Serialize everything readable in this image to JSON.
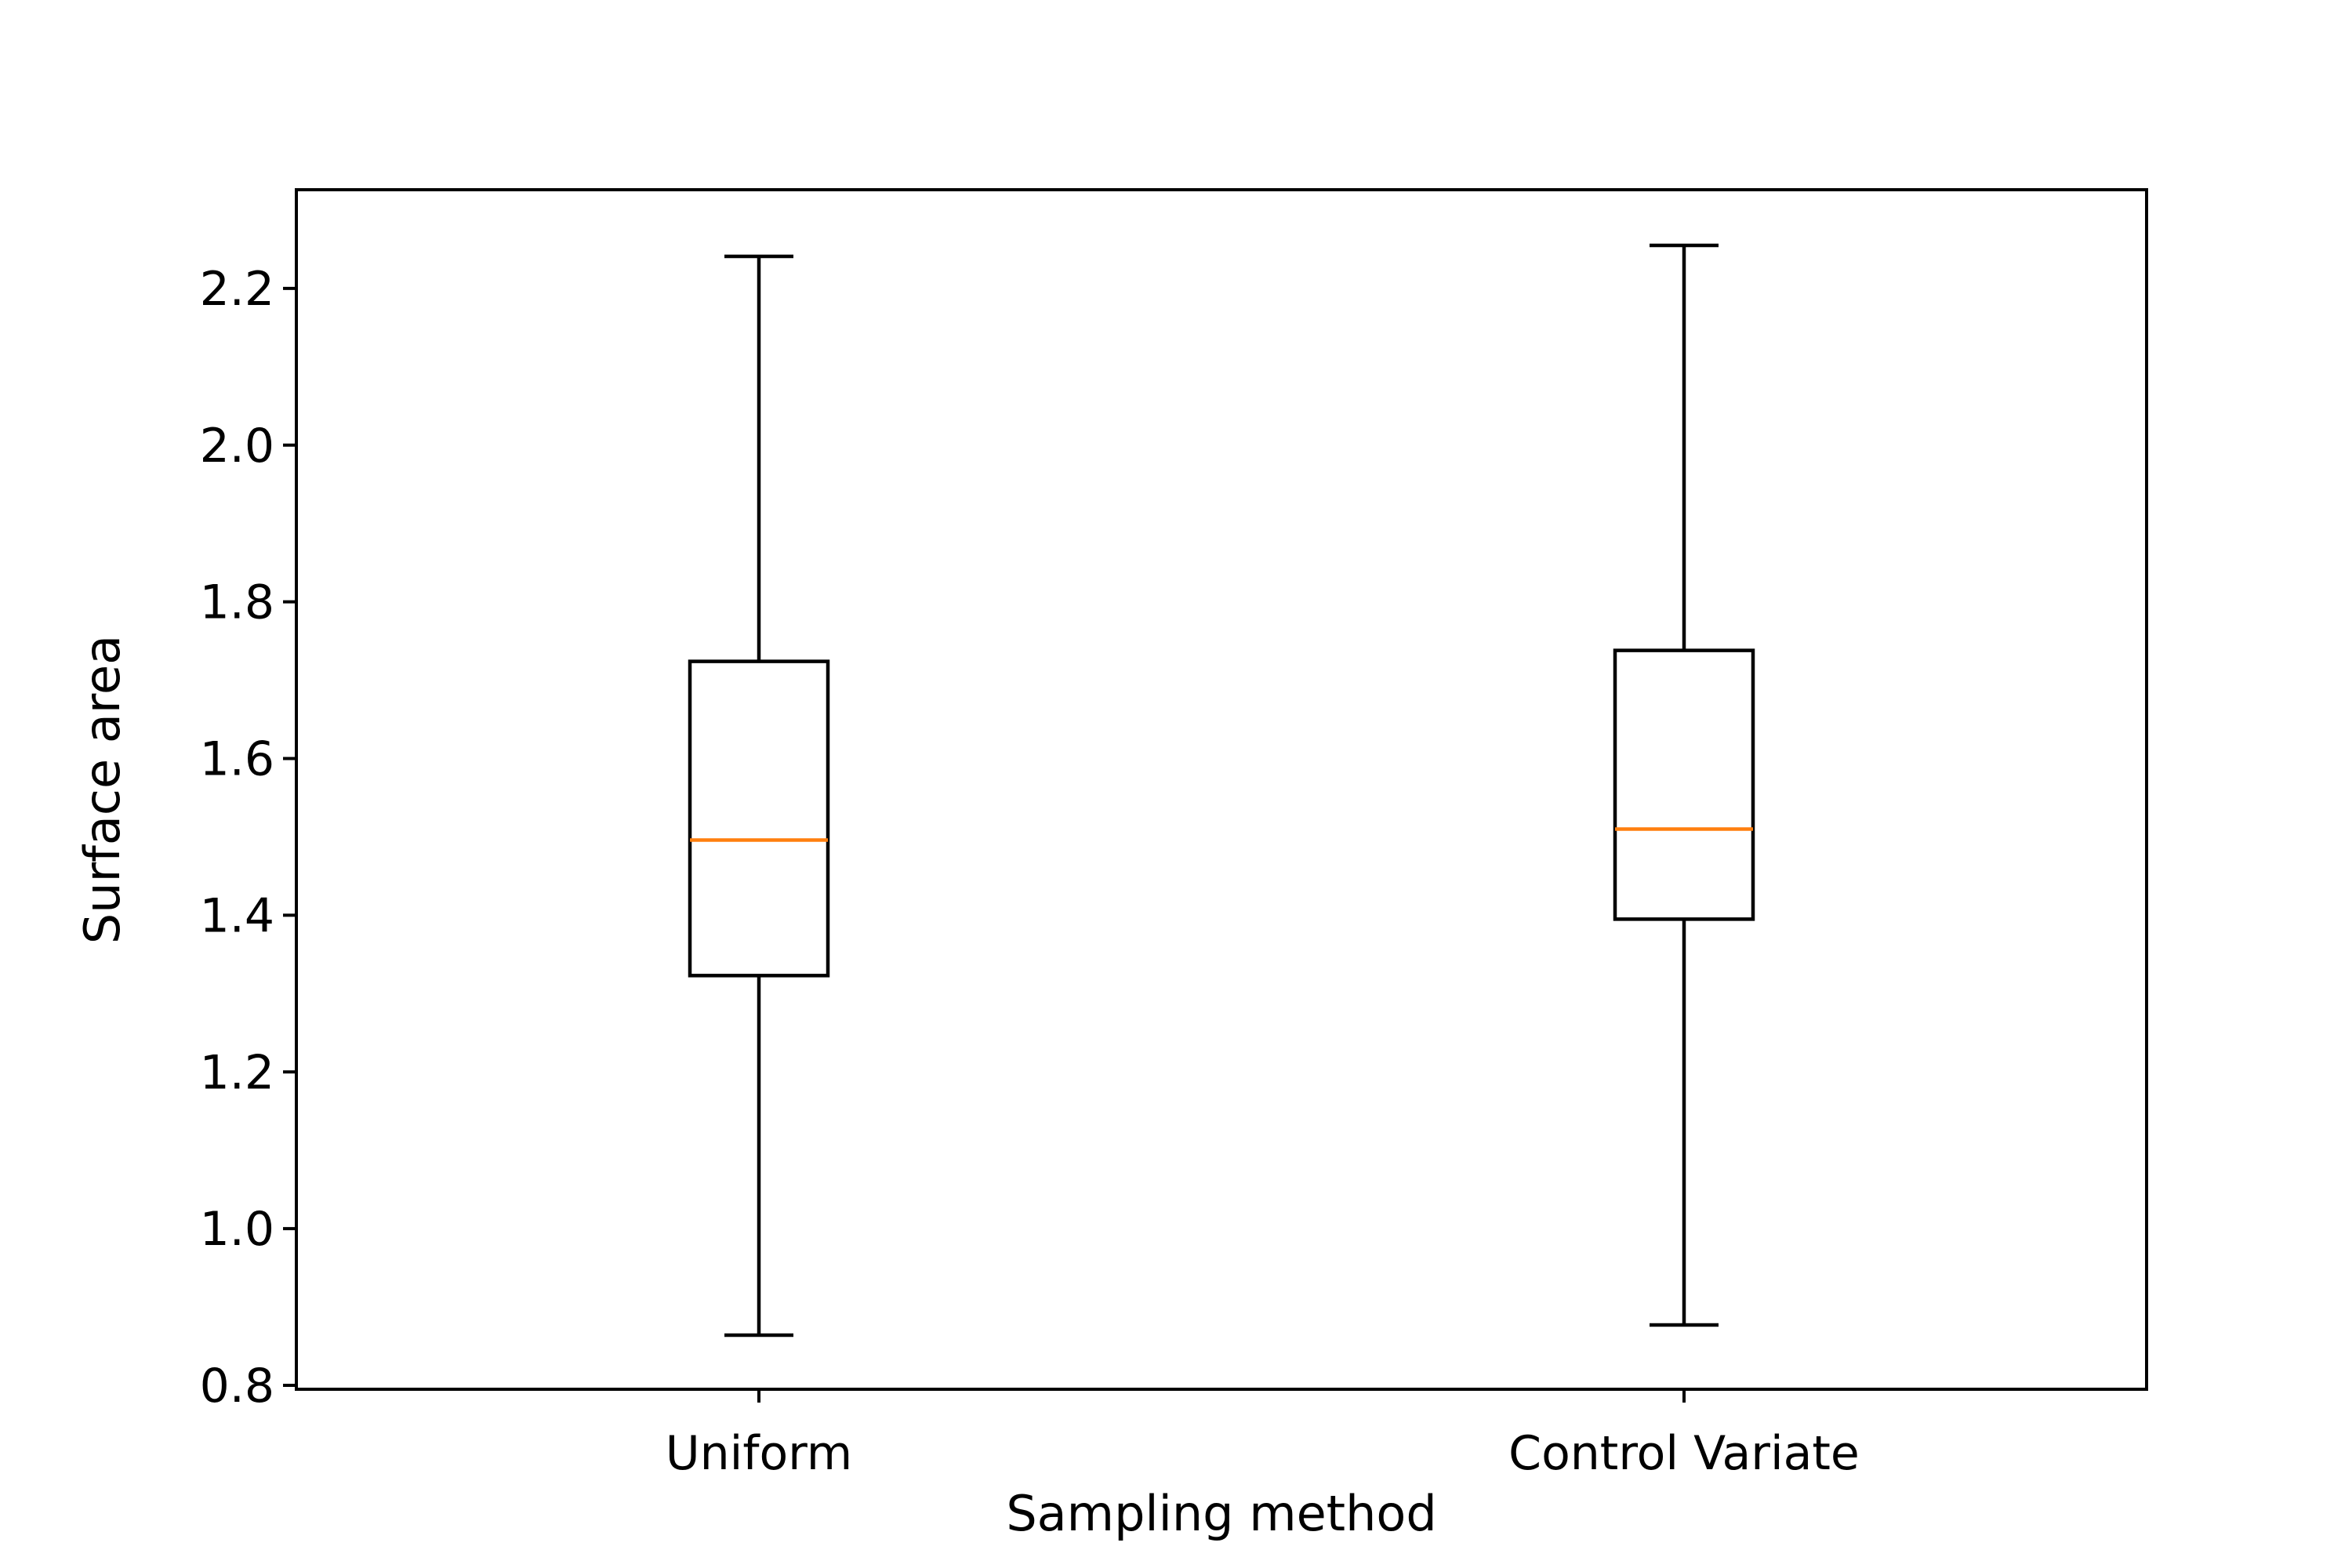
{
  "chart_data": {
    "type": "box",
    "title": "",
    "xlabel": "Sampling method",
    "ylabel": "Surface area",
    "categories": [
      "Uniform",
      "Control Variate"
    ],
    "boxes": [
      {
        "name": "Uniform",
        "whisker_low": 0.864,
        "q1": 1.323,
        "median": 1.496,
        "q3": 1.724,
        "whisker_high": 2.241
      },
      {
        "name": "Control Variate",
        "whisker_low": 0.877,
        "q1": 1.395,
        "median": 1.51,
        "q3": 1.738,
        "whisker_high": 2.255
      }
    ],
    "ylim": [
      0.795,
      2.326
    ],
    "yticks": [
      0.8,
      1.0,
      1.2,
      1.4,
      1.6,
      1.8,
      2.0,
      2.2
    ],
    "ytick_labels": [
      "0.8",
      "1.0",
      "1.2",
      "1.4",
      "1.6",
      "1.8",
      "2.0",
      "2.2"
    ],
    "grid": false,
    "colors": {
      "box": "#000000",
      "median": "#ff7f0e"
    }
  }
}
